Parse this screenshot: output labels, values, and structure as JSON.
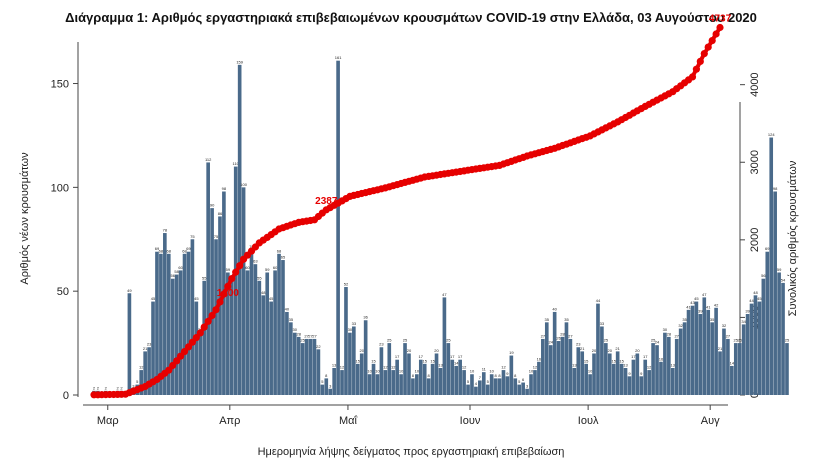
{
  "chart_data": {
    "type": "bar",
    "title": "Διάγραμμα 1: Αριθμός εργαστηριακά επιβεβαιωμένων κρουσμάτων COVID-19 στην Ελλάδα, 03 Αυγούστου 2020",
    "xlabel": "Ημερομηνία λήψης δείγματος προς εργαστηριακή επιβεβαίωση",
    "ylabel": "Αριθμός νέων κρουσμάτων",
    "y2label": "Συνολικός αριθμός κρουσμάτων",
    "x_start": "2020-02-26",
    "x_end": "2020-08-03",
    "x_tick_labels": [
      "Μαρ",
      "Απρ",
      "Μαΐ",
      "Ιουν",
      "Ιουλ",
      "Αυγ"
    ],
    "x_tick_dates": [
      "2020-03-01",
      "2020-04-01",
      "2020-05-01",
      "2020-06-01",
      "2020-07-01",
      "2020-08-01"
    ],
    "ylim": [
      0,
      170
    ],
    "y_ticks": [
      0,
      50,
      100,
      150
    ],
    "y2lim": [
      0,
      4550
    ],
    "y2_ticks": [
      0,
      1000,
      2000,
      3000,
      4000
    ],
    "grid": false,
    "series": [
      {
        "values": [
          2,
          2,
          0,
          2,
          0,
          0,
          2,
          2,
          0,
          49,
          3,
          5,
          12,
          21,
          23,
          45,
          69,
          68,
          78,
          68,
          56,
          58,
          60,
          68,
          69,
          75,
          45,
          30,
          55,
          112,
          90,
          75,
          86,
          98,
          59,
          55,
          110,
          159,
          100,
          60,
          70,
          63,
          55,
          48,
          59,
          45,
          60,
          68,
          65,
          40,
          35,
          30,
          28,
          25,
          27,
          27,
          27,
          22,
          5,
          8,
          3,
          13,
          161,
          12,
          52,
          30,
          33,
          15,
          20,
          36,
          10,
          15,
          10,
          23,
          12,
          25,
          12,
          17,
          10,
          25,
          20,
          8,
          10,
          17,
          15,
          8,
          15,
          20,
          13,
          47,
          25,
          17,
          14,
          17,
          12,
          5,
          10,
          4,
          7,
          11,
          5,
          10,
          8,
          8,
          12,
          9,
          19,
          8,
          5,
          6,
          3,
          10,
          12,
          16,
          27,
          35,
          24,
          40,
          26,
          28,
          35,
          27,
          13,
          23,
          21,
          15,
          10,
          20,
          44,
          33,
          25,
          20,
          15,
          21,
          15,
          13,
          9,
          17,
          20,
          9,
          17,
          12,
          25,
          24,
          16,
          30,
          28,
          13,
          27,
          32,
          35,
          41,
          43,
          45,
          39,
          47,
          41,
          35,
          42,
          21,
          32,
          27,
          14,
          25,
          25,
          34,
          39,
          44,
          48,
          45,
          56,
          69,
          124,
          98,
          59,
          54,
          25
        ],
        "color": "#4a6a8a"
      },
      {
        "type": "line",
        "color": "#e60000",
        "points": [
          [
            "2020-02-26",
            2
          ],
          [
            "2020-03-05",
            10
          ],
          [
            "2020-03-10",
            110
          ],
          [
            "2020-03-13",
            200
          ],
          [
            "2020-03-16",
            320
          ],
          [
            "2020-03-20",
            560
          ],
          [
            "2020-03-24",
            800
          ],
          [
            "2020-03-28",
            1100
          ],
          [
            "2020-04-01",
            1500
          ],
          [
            "2020-04-04",
            1750
          ],
          [
            "2020-04-08",
            1960
          ],
          [
            "2020-04-13",
            2140
          ],
          [
            "2020-04-18",
            2225
          ],
          [
            "2020-04-22",
            2258
          ],
          [
            "2020-04-25",
            2387
          ],
          [
            "2020-05-01",
            2560
          ],
          [
            "2020-05-10",
            2670
          ],
          [
            "2020-05-20",
            2810
          ],
          [
            "2020-06-01",
            2905
          ],
          [
            "2020-06-08",
            2960
          ],
          [
            "2020-06-15",
            3080
          ],
          [
            "2020-06-22",
            3180
          ],
          [
            "2020-07-01",
            3340
          ],
          [
            "2020-07-08",
            3520
          ],
          [
            "2020-07-15",
            3720
          ],
          [
            "2020-07-22",
            3910
          ],
          [
            "2020-07-27",
            4100
          ],
          [
            "2020-07-30",
            4400
          ],
          [
            "2020-08-03",
            4737
          ]
        ]
      }
    ],
    "annotations": [
      {
        "text": "1200",
        "date": "2020-03-31",
        "value": 1200
      },
      {
        "text": "2387",
        "date": "2020-04-25",
        "value": 2387
      },
      {
        "text": "4737",
        "date": "2020-08-03",
        "value": 4737
      }
    ]
  }
}
